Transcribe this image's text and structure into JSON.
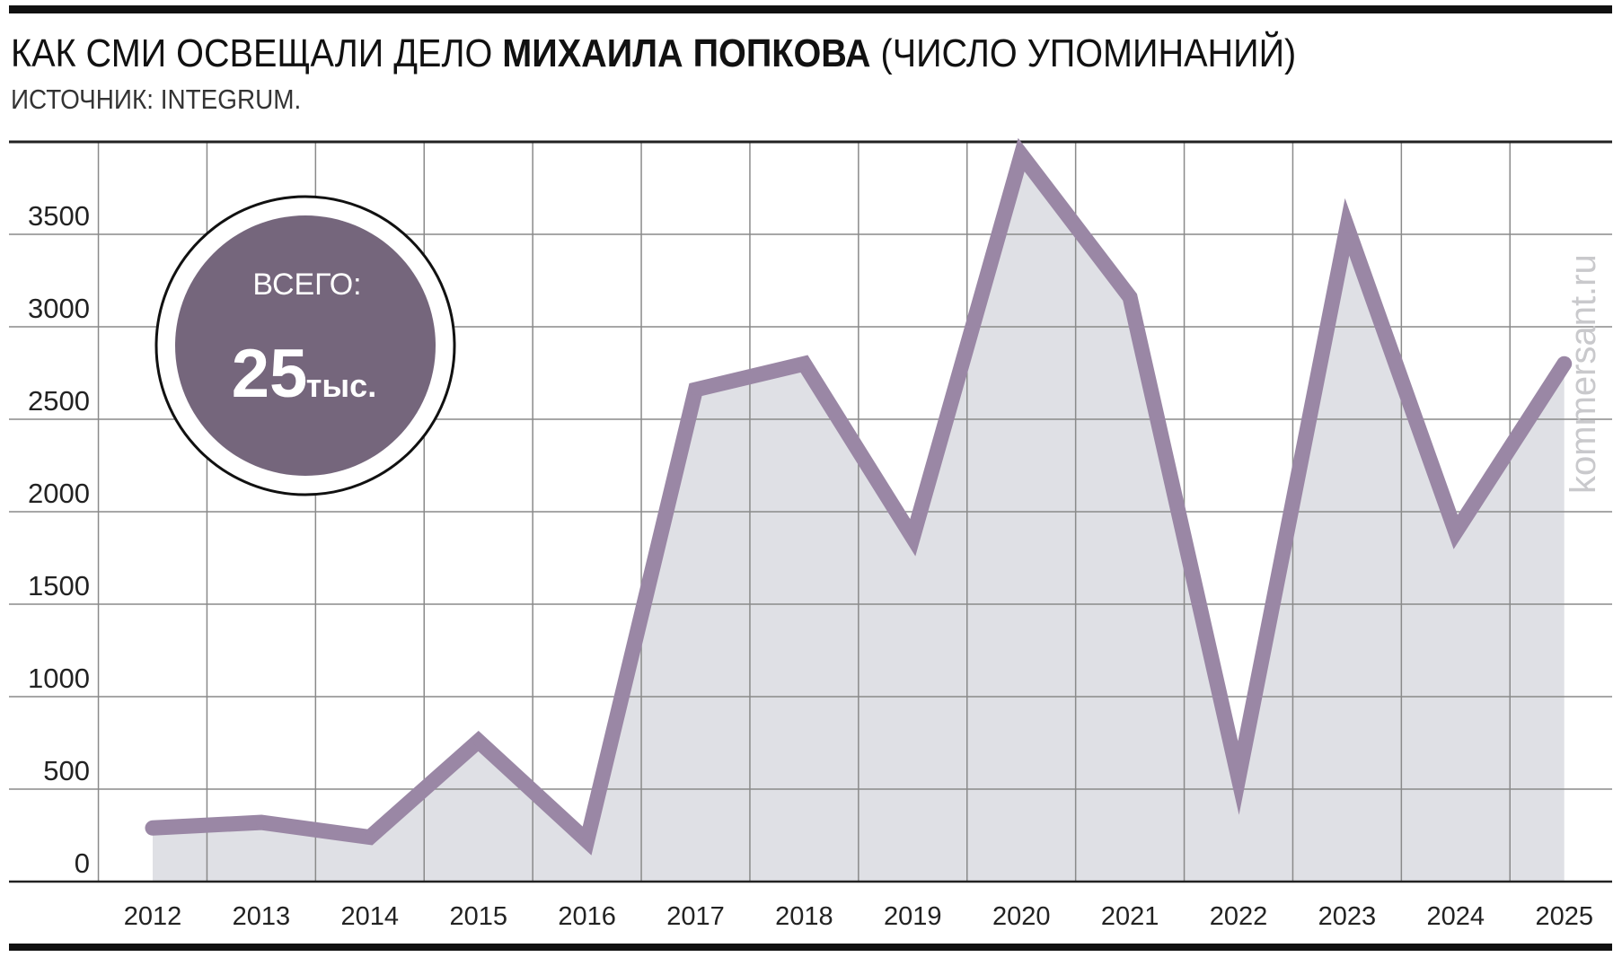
{
  "header": {
    "title_pre": "КАК СМИ ОСВЕЩАЛИ ДЕЛО ",
    "title_bold": "МИХАИЛА ПОПКОВА",
    "title_post": " (ЧИСЛО УПОМИНАНИЙ)",
    "source": "ИСТОЧНИК: INTEGRUM."
  },
  "badge": {
    "label": "ВСЕГО:",
    "value": "25",
    "unit": "тыс."
  },
  "watermark": "kommersant.ru",
  "colors": {
    "line": "#9a87a5",
    "area": "#dfe0e5",
    "badge_fill": "#75667c",
    "grid": "#8a8a8a",
    "axis": "#222222"
  },
  "chart_data": {
    "type": "area",
    "title": "КАК СМИ ОСВЕЩАЛИ ДЕЛО МИХАИЛА ПОПКОВА (ЧИСЛО УПОМИНАНИЙ)",
    "categories": [
      "2012",
      "2013",
      "2014",
      "2015",
      "2016",
      "2017",
      "2018",
      "2019",
      "2020",
      "2021",
      "2022",
      "2023",
      "2024",
      "2025"
    ],
    "values": [
      290,
      320,
      240,
      760,
      220,
      2660,
      2800,
      1860,
      3930,
      3160,
      560,
      3540,
      1890,
      2800
    ],
    "y_ticks": [
      "0",
      "500",
      "1000",
      "1500",
      "2000",
      "2500",
      "3000",
      "3500"
    ],
    "ylim": [
      0,
      4000
    ],
    "xlabel": "",
    "ylabel": "",
    "grid": true,
    "legend": "none"
  }
}
